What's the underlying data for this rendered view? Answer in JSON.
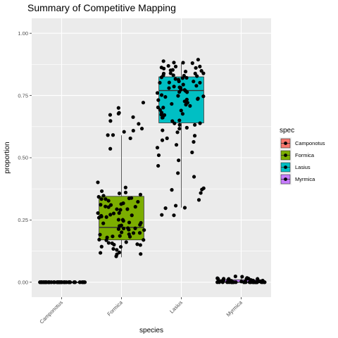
{
  "chart_data": {
    "type": "box",
    "title": "Summary of Competitive Mapping",
    "xlabel": "species",
    "ylabel": "proportion",
    "categories": [
      "Camponotus",
      "Formica",
      "Lasius",
      "Myrmica"
    ],
    "ylim": [
      -0.06,
      1.06
    ],
    "y_ticks": [
      0.0,
      0.25,
      0.5,
      0.75,
      1.0
    ],
    "y_tick_labels": [
      "0.00",
      "0.25",
      "0.50",
      "0.75",
      "1.00"
    ],
    "grid": true,
    "legend": {
      "title": "spec",
      "position": "right",
      "entries": [
        "Camponotus",
        "Formica",
        "Lasius",
        "Myrmica"
      ]
    },
    "colors": {
      "Camponotus": "#f8766d",
      "Formica": "#7cae00",
      "Lasius": "#00bfc4",
      "Myrmica": "#c77cff",
      "panel": "#ebebeb",
      "grid": "#ffffff",
      "point": "#000000"
    },
    "boxes": [
      {
        "name": "Camponotus",
        "min": 0.0,
        "q1": 0.0,
        "median": 0.0,
        "q3": 0.0,
        "max": 0.0
      },
      {
        "name": "Formica",
        "min": 0.1,
        "q1": 0.17,
        "median": 0.22,
        "q3": 0.345,
        "max": 0.59
      },
      {
        "name": "Lasius",
        "min": 0.3,
        "q1": 0.64,
        "median": 0.77,
        "q3": 0.825,
        "max": 0.88
      },
      {
        "name": "Myrmica",
        "min": 0.0,
        "q1": 0.0,
        "median": 0.0,
        "q3": 0.01,
        "max": 0.02
      }
    ],
    "points": [
      {
        "species": "Camponotus",
        "values": [
          0,
          0,
          0,
          0,
          0,
          0,
          0,
          0,
          0,
          0,
          0,
          0,
          0,
          0,
          0,
          0,
          0,
          0,
          0,
          0,
          0,
          0,
          0,
          0,
          0,
          0,
          0,
          0,
          0,
          0,
          0,
          0,
          0,
          0,
          0,
          0,
          0,
          0,
          0,
          0,
          0,
          0,
          0,
          0,
          0,
          0,
          0,
          0,
          0,
          0,
          0,
          0,
          0,
          0,
          0,
          0,
          0,
          0,
          0,
          0
        ]
      },
      {
        "species": "Formica",
        "values": [
          0.72,
          0.7,
          0.68,
          0.68,
          0.67,
          0.66,
          0.65,
          0.64,
          0.62,
          0.61,
          0.6,
          0.59,
          0.59,
          0.58,
          0.54,
          0.4,
          0.38,
          0.37,
          0.36,
          0.36,
          0.35,
          0.35,
          0.34,
          0.34,
          0.34,
          0.33,
          0.33,
          0.33,
          0.32,
          0.32,
          0.31,
          0.31,
          0.31,
          0.3,
          0.3,
          0.3,
          0.29,
          0.29,
          0.29,
          0.28,
          0.28,
          0.28,
          0.27,
          0.27,
          0.27,
          0.26,
          0.26,
          0.26,
          0.25,
          0.25,
          0.25,
          0.24,
          0.24,
          0.24,
          0.23,
          0.23,
          0.23,
          0.22,
          0.22,
          0.22,
          0.21,
          0.21,
          0.21,
          0.2,
          0.2,
          0.2,
          0.19,
          0.19,
          0.19,
          0.18,
          0.18,
          0.18,
          0.17,
          0.17,
          0.17,
          0.16,
          0.16,
          0.16,
          0.15,
          0.15,
          0.15,
          0.14,
          0.14,
          0.13,
          0.13,
          0.12,
          0.12,
          0.11,
          0.11,
          0.1
        ]
      },
      {
        "species": "Lasius",
        "values": [
          0.89,
          0.89,
          0.88,
          0.88,
          0.88,
          0.87,
          0.87,
          0.87,
          0.86,
          0.86,
          0.86,
          0.85,
          0.85,
          0.85,
          0.85,
          0.84,
          0.84,
          0.84,
          0.84,
          0.83,
          0.83,
          0.83,
          0.83,
          0.82,
          0.82,
          0.82,
          0.82,
          0.81,
          0.81,
          0.81,
          0.8,
          0.8,
          0.8,
          0.79,
          0.79,
          0.79,
          0.78,
          0.78,
          0.78,
          0.77,
          0.77,
          0.77,
          0.76,
          0.76,
          0.76,
          0.75,
          0.75,
          0.75,
          0.74,
          0.74,
          0.74,
          0.73,
          0.73,
          0.73,
          0.72,
          0.72,
          0.71,
          0.71,
          0.7,
          0.7,
          0.69,
          0.69,
          0.68,
          0.68,
          0.67,
          0.67,
          0.66,
          0.66,
          0.65,
          0.65,
          0.64,
          0.64,
          0.63,
          0.63,
          0.62,
          0.62,
          0.61,
          0.6,
          0.59,
          0.58,
          0.57,
          0.56,
          0.55,
          0.54,
          0.52,
          0.51,
          0.49,
          0.47,
          0.44,
          0.42,
          0.38,
          0.37,
          0.37,
          0.36,
          0.33,
          0.31,
          0.3,
          0.3,
          0.27,
          0.27
        ]
      },
      {
        "species": "Myrmica",
        "values": [
          0.02,
          0.02,
          0.02,
          0.015,
          0.015,
          0.015,
          0.015,
          0.01,
          0.01,
          0.01,
          0.01,
          0.01,
          0.01,
          0.01,
          0.01,
          0.01,
          0.005,
          0.005,
          0.005,
          0.005,
          0.005,
          0.005,
          0.005,
          0.005,
          0.005,
          0.005,
          0.005,
          0.005,
          0,
          0,
          0,
          0,
          0,
          0,
          0,
          0,
          0,
          0,
          0,
          0,
          0,
          0,
          0,
          0,
          0,
          0,
          0,
          0,
          0,
          0,
          0,
          0,
          0,
          0,
          0,
          0,
          0,
          0,
          0,
          0
        ]
      }
    ]
  }
}
